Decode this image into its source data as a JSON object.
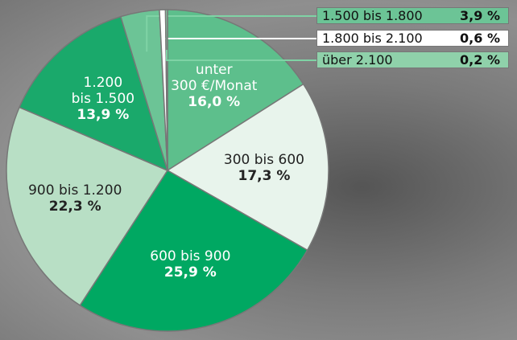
{
  "chart_data": {
    "type": "pie",
    "categories": [
      "unter\n300 €/Monat",
      "300 bis 600",
      "600 bis 900",
      "900 bis 1.200",
      "1.200\nbis 1.500",
      "1.500 bis 1.800",
      "1.800 bis 2.100",
      "über 2.100"
    ],
    "values": [
      16.0,
      17.3,
      25.9,
      22.3,
      13.9,
      3.9,
      0.6,
      0.2
    ],
    "value_labels": [
      "16,0 %",
      "17,3 %",
      "25,9 %",
      "22,3 %",
      "13,9 %",
      "3,9 %",
      "0,6 %",
      "0,2 %"
    ],
    "colors": [
      "#5dbf8c",
      "#e8f4ec",
      "#00a862",
      "#b8dfc5",
      "#1aa96b",
      "#6cc496",
      "#ffffff",
      "#8fd1aa"
    ]
  }
}
